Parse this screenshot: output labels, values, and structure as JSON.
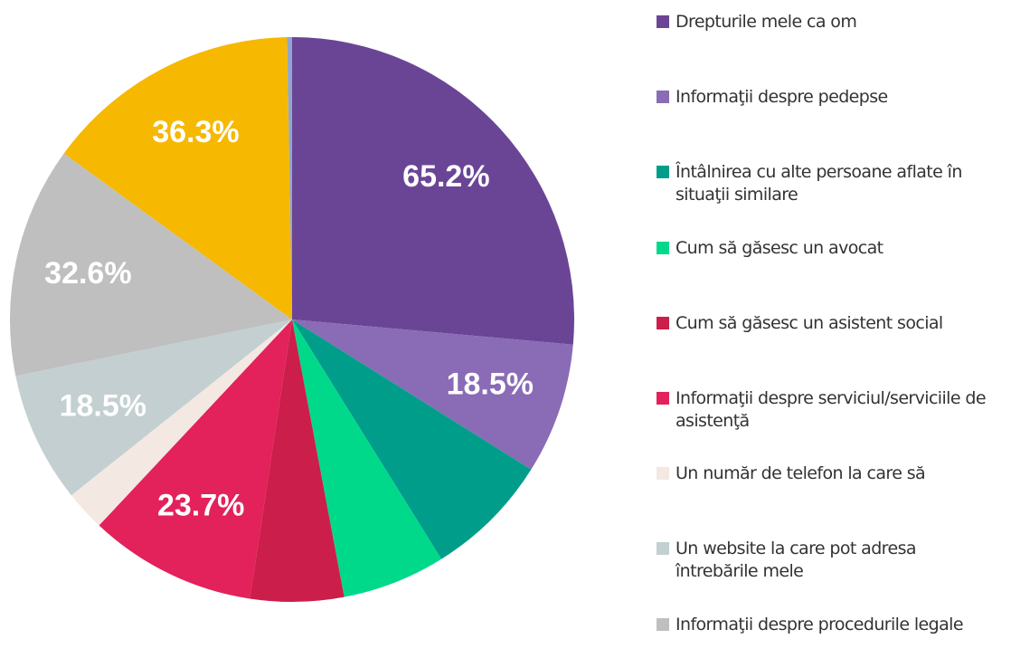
{
  "chart_data": {
    "type": "pie",
    "categories": [
      "Drepturile mele ca om",
      "Informaţii  despre pedepse",
      "Întâlnirea cu alte persoane aflate în situaţii  similare",
      "Cum să găsesc un avocat",
      "Cum să găsesc un asistent social",
      "Informaţii  despre serviciul/serviciile de asistenţă",
      "Un număr de telefon la care să",
      "Un website la care pot adresa întrebările mele",
      "Informaţii  despre procedurile legale",
      null,
      null
    ],
    "values": [
      65.2,
      18.5,
      17.8,
      14.6,
      13.2,
      23.7,
      5.7,
      18.5,
      32.6,
      36.3,
      0.7
    ],
    "value_labels": [
      "65.2%",
      "18.5%",
      null,
      null,
      null,
      "23.7%",
      null,
      "18.5%",
      "32.6%",
      "36.3%",
      null
    ],
    "colors": [
      "#6a4596",
      "#8a6bb5",
      "#009e8a",
      "#00d98a",
      "#cc1e4a",
      "#e3215a",
      "#f3e8e2",
      "#c3cfd0",
      "#bfbfbf",
      "#f6b800",
      "#8fa7d0"
    ],
    "legend": "right"
  }
}
